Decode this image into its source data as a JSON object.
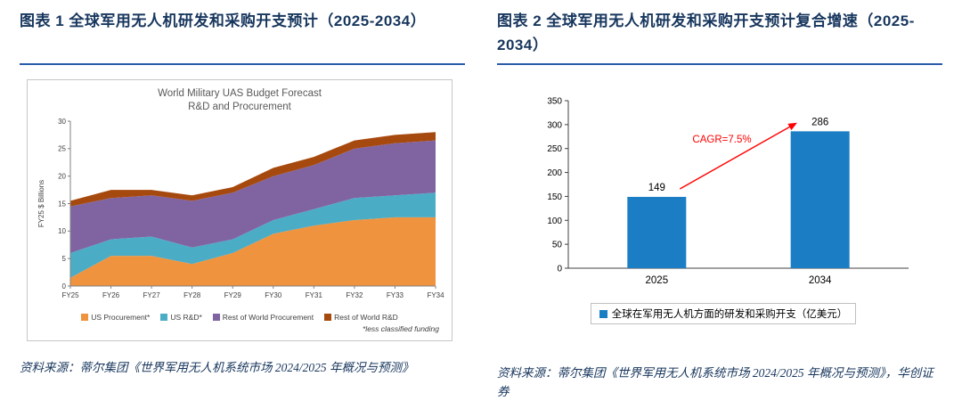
{
  "page": {
    "background": "#FFFFFF",
    "accent_rule_color": "#2A5CAA",
    "title_color": "#17365D",
    "source_color": "#17365D"
  },
  "left_panel": {
    "title": "图表 1 全球军用无人机研发和采购开支预计（2025-2034）",
    "source": "资料来源：蒂尔集团《世界军用无人机系统市场 2024/2025 年概况与预测》"
  },
  "right_panel": {
    "title": "图表 2 全球军用无人机研发和采购开支预计复合增速（2025-2034）",
    "source": "资料来源：蒂尔集团《世界军用无人机系统市场 2024/2025 年概况与预测》，华创证券"
  },
  "chart_data": [
    {
      "id": "world-military-uas-budget-forecast",
      "type": "area",
      "stacked": true,
      "title_line1": "World Military UAS Budget Forecast",
      "title_line2": "R&D and Procurement",
      "ylabel": "FY25 $ Billions",
      "ylim": [
        0,
        30
      ],
      "ytick_step": 5,
      "grid": false,
      "legend_position": "bottom",
      "footnote": "*less classified funding",
      "categories": [
        "FY25",
        "FY26",
        "FY27",
        "FY28",
        "FY29",
        "FY30",
        "FY31",
        "FY32",
        "FY33",
        "FY34"
      ],
      "series": [
        {
          "name": "US Procurement*",
          "color": "#F0933E",
          "values": [
            1.5,
            5.5,
            5.5,
            4.0,
            6.0,
            9.5,
            11.0,
            12.0,
            12.5,
            12.5
          ]
        },
        {
          "name": "US R&D*",
          "color": "#4BACC6",
          "values": [
            4.5,
            3.0,
            3.5,
            3.0,
            2.5,
            2.5,
            3.0,
            4.0,
            4.0,
            4.5
          ]
        },
        {
          "name": "Rest of World Procurement",
          "color": "#8064A2",
          "values": [
            8.5,
            7.5,
            7.5,
            8.5,
            8.5,
            8.0,
            8.0,
            9.0,
            9.5,
            9.5
          ]
        },
        {
          "name": "Rest of World R&D",
          "color": "#A6490E",
          "values": [
            1.0,
            1.5,
            1.0,
            1.0,
            1.0,
            1.5,
            1.5,
            1.5,
            1.5,
            1.5
          ]
        }
      ]
    },
    {
      "id": "uas-spending-cagr",
      "type": "bar",
      "categories": [
        "2025",
        "2034"
      ],
      "values": [
        149,
        286
      ],
      "bar_color": "#1B7EC4",
      "ylim": [
        0,
        350
      ],
      "ytick_step": 50,
      "grid": false,
      "annotation": "CAGR=7.5%",
      "annotation_color": "#FF0000",
      "legend_label": "全球在军用无人机方面的研发和采购开支（亿美元）",
      "legend_position": "bottom"
    }
  ]
}
